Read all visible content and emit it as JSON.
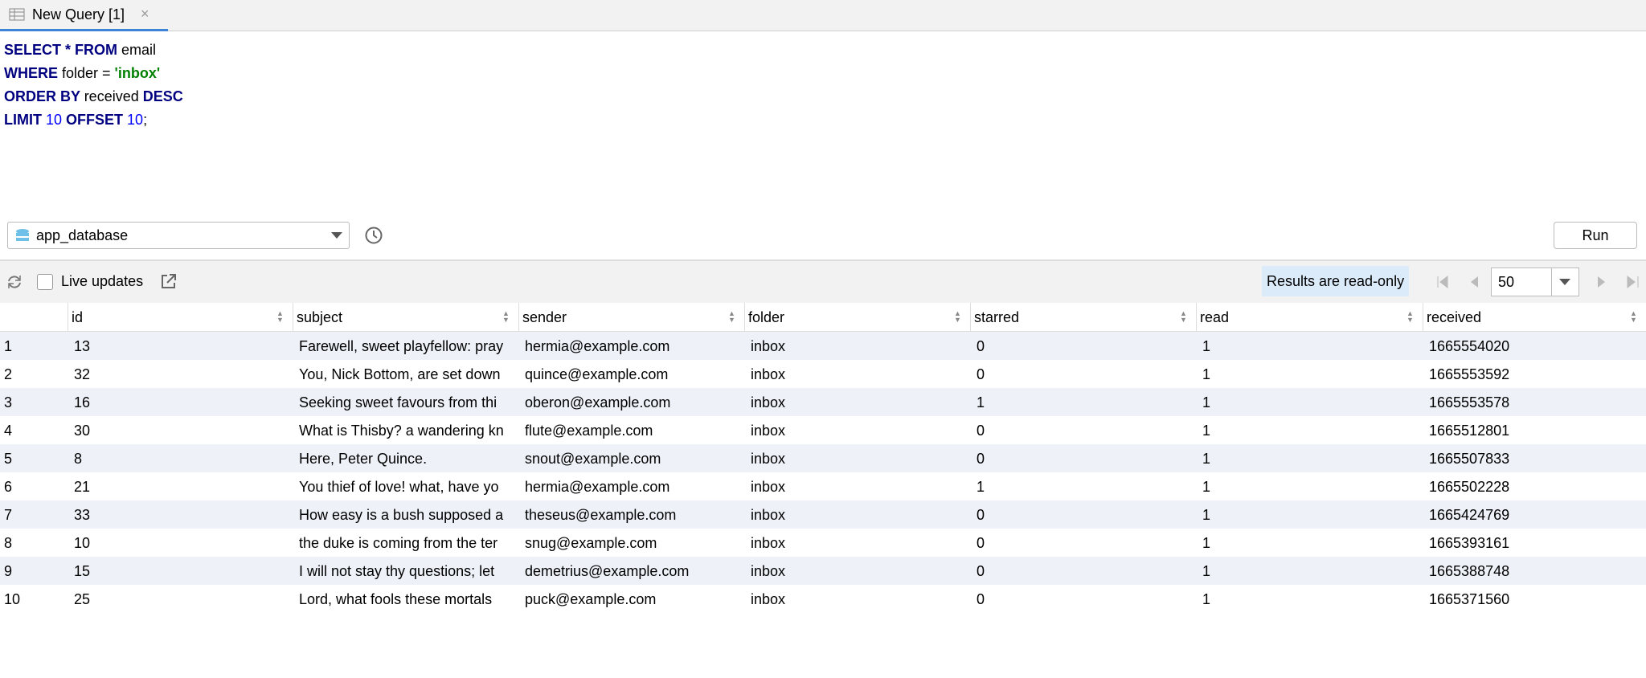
{
  "tab": {
    "title": "New Query [1]"
  },
  "editor": {
    "lines": [
      [
        {
          "text": "SELECT * FROM ",
          "color": "#000080",
          "bold": true
        },
        {
          "text": "email",
          "color": "#000000",
          "bold": false
        }
      ],
      [
        {
          "text": "WHERE ",
          "color": "#000080",
          "bold": true
        },
        {
          "text": "folder = ",
          "color": "#000000",
          "bold": false
        },
        {
          "text": "'inbox'",
          "color": "#008000",
          "bold": true
        }
      ],
      [
        {
          "text": "ORDER BY ",
          "color": "#000080",
          "bold": true
        },
        {
          "text": "received ",
          "color": "#000000",
          "bold": false
        },
        {
          "text": "DESC",
          "color": "#000080",
          "bold": true
        }
      ],
      [
        {
          "text": "LIMIT ",
          "color": "#000080",
          "bold": true
        },
        {
          "text": "10",
          "color": "#0000ff",
          "bold": false
        },
        {
          "text": " OFFSET ",
          "color": "#000080",
          "bold": true
        },
        {
          "text": "10",
          "color": "#0000ff",
          "bold": false
        },
        {
          "text": ";",
          "color": "#000000",
          "bold": false
        }
      ]
    ]
  },
  "toolbar": {
    "database": "app_database",
    "run": "Run"
  },
  "results": {
    "live_updates": "Live updates",
    "read_only": "Results are read-only",
    "page_size": "50"
  },
  "table": {
    "columns": [
      "id",
      "subject",
      "sender",
      "folder",
      "starred",
      "read",
      "received"
    ],
    "rows": [
      [
        "1",
        "13",
        "Farewell, sweet playfellow: pray",
        "hermia@example.com",
        "inbox",
        "0",
        "1",
        "1665554020"
      ],
      [
        "2",
        "32",
        "You, Nick Bottom, are set down",
        "quince@example.com",
        "inbox",
        "0",
        "1",
        "1665553592"
      ],
      [
        "3",
        "16",
        "Seeking sweet favours from thi",
        "oberon@example.com",
        "inbox",
        "1",
        "1",
        "1665553578"
      ],
      [
        "4",
        "30",
        "What is Thisby? a wandering kn",
        "flute@example.com",
        "inbox",
        "0",
        "1",
        "1665512801"
      ],
      [
        "5",
        "8",
        "Here, Peter Quince.",
        "snout@example.com",
        "inbox",
        "0",
        "1",
        "1665507833"
      ],
      [
        "6",
        "21",
        "You thief of love! what, have yo",
        "hermia@example.com",
        "inbox",
        "1",
        "1",
        "1665502228"
      ],
      [
        "7",
        "33",
        "How easy is a bush supposed a",
        "theseus@example.com",
        "inbox",
        "0",
        "1",
        "1665424769"
      ],
      [
        "8",
        "10",
        "the duke is coming from the ter",
        "snug@example.com",
        "inbox",
        "0",
        "1",
        "1665393161"
      ],
      [
        "9",
        "15",
        "I will not stay thy questions; let",
        "demetrius@example.com",
        "inbox",
        "0",
        "1",
        "1665388748"
      ],
      [
        "10",
        "25",
        "Lord, what fools these mortals",
        "puck@example.com",
        "inbox",
        "0",
        "1",
        "1665371560"
      ]
    ]
  }
}
